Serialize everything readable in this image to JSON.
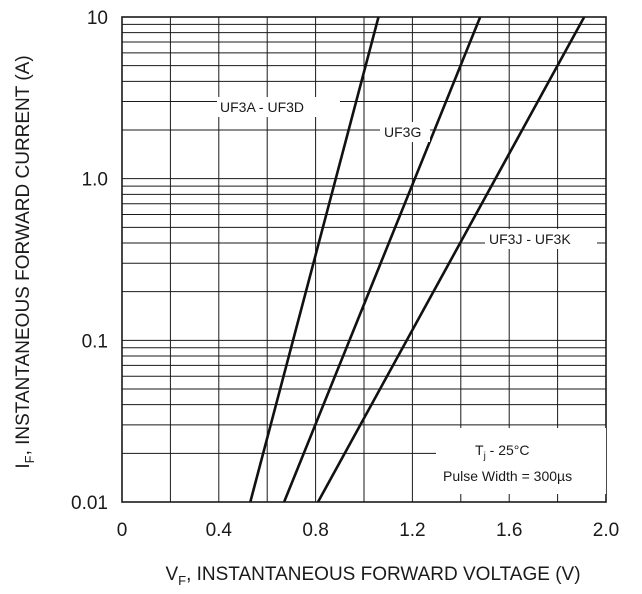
{
  "chart_data": {
    "type": "line",
    "xlabel": {
      "main": "V",
      "sub": "F",
      "rest": ", INSTANTANEOUS FORWARD VOLTAGE (V)"
    },
    "ylabel": {
      "main": "I",
      "sub": "F",
      "rest": ", INSTANTANEOUS FORWARD CURRENT (A)"
    },
    "xlim": [
      0,
      2.0
    ],
    "ylim": [
      0.01,
      10
    ],
    "yscale": "log",
    "grid": true,
    "x_ticks": [
      "0",
      "0.4",
      "0.8",
      "1.2",
      "1.6",
      "2.0"
    ],
    "x_tick_values": [
      0,
      0.4,
      0.8,
      1.2,
      1.6,
      2.0
    ],
    "y_ticks": [
      "0.01",
      "0.1",
      "1.0",
      "10"
    ],
    "y_tick_values": [
      0.01,
      0.1,
      1.0,
      10
    ],
    "series": [
      {
        "name": "UF3A - UF3D",
        "x": [
          0.53,
          1.06
        ],
        "y": [
          0.01,
          10
        ]
      },
      {
        "name": "UF3G",
        "x": [
          0.67,
          1.48
        ],
        "y": [
          0.01,
          10
        ]
      },
      {
        "name": "UF3J - UF3K",
        "x": [
          0.81,
          1.91
        ],
        "y": [
          0.01,
          10
        ]
      }
    ],
    "annotation": {
      "line1_main": "T",
      "line1_sub": "j",
      "line1_rest": " - 25°C",
      "line2": "Pulse Width = 300µs"
    }
  }
}
